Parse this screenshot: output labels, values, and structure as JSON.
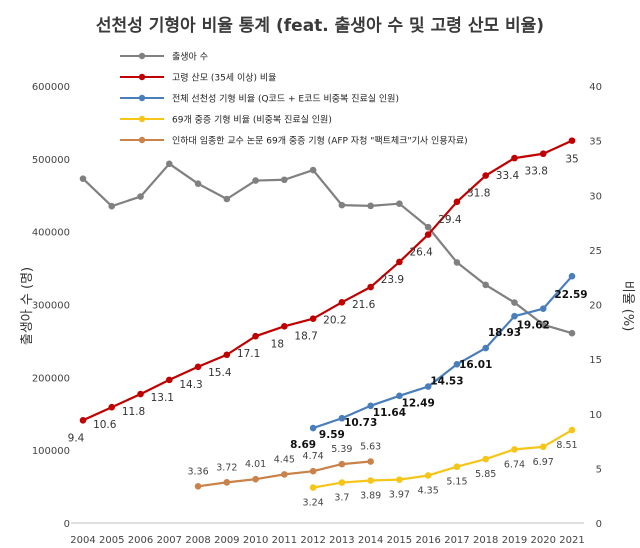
{
  "chart_data": {
    "type": "line",
    "title": "선천성 기형아 비율 통계 (feat. 출생아 수 및 고령 산모 비율)",
    "ylabel_left": "출생아 수 (명)",
    "ylabel_right": "비율 (%)",
    "x": [
      "2004",
      "2005",
      "2006",
      "2007",
      "2008",
      "2009",
      "2010",
      "2011",
      "2012",
      "2013",
      "2014",
      "2015",
      "2016",
      "2017",
      "2018",
      "2019",
      "2020",
      "2021"
    ],
    "ylim_left": [
      0,
      600000
    ],
    "yticks_left": [
      "0",
      "100000",
      "200000",
      "300000",
      "400000",
      "500000",
      "600000"
    ],
    "ylim_right": [
      0,
      40
    ],
    "yticks_right": [
      "0",
      "5",
      "10",
      "15",
      "20",
      "25",
      "30",
      "35",
      "40"
    ],
    "legend_position": "top",
    "grid": false,
    "series": [
      {
        "name": "출생아 수",
        "axis": "left",
        "color": "#808080",
        "x": [
          "2004",
          "2005",
          "2006",
          "2007",
          "2008",
          "2009",
          "2010",
          "2011",
          "2012",
          "2013",
          "2014",
          "2015",
          "2016",
          "2017",
          "2018",
          "2019",
          "2020",
          "2021"
        ],
        "values": [
          472761,
          435031,
          448153,
          493189,
          465892,
          444849,
          470171,
          471265,
          484550,
          436455,
          435435,
          438420,
          406243,
          357771,
          326822,
          302676,
          272337,
          260562
        ],
        "labels": []
      },
      {
        "name": "고령 산모 (35세 이상) 비율",
        "axis": "right",
        "color": "#c00000",
        "x": [
          "2004",
          "2005",
          "2006",
          "2007",
          "2008",
          "2009",
          "2010",
          "2011",
          "2012",
          "2013",
          "2014",
          "2015",
          "2016",
          "2017",
          "2018",
          "2019",
          "2020",
          "2021"
        ],
        "values": [
          9.4,
          10.6,
          11.8,
          13.1,
          14.3,
          15.4,
          17.1,
          18,
          18.7,
          20.2,
          21.6,
          23.9,
          26.4,
          29.4,
          31.8,
          33.4,
          33.8,
          35
        ],
        "labels": [
          "9.4",
          "10.6",
          "11.8",
          "13.1",
          "14.3",
          "15.4",
          "17.1",
          "18",
          "18.7",
          "20.2",
          "21.6",
          "23.9",
          "26.4",
          "29.4",
          "31.8",
          "33.4",
          "33.8",
          "35"
        ]
      },
      {
        "name": "전체 선천성 기형 비율 (Q코드 + E코드 비중복 진료실 인원)",
        "axis": "right",
        "color": "#4a7ebb",
        "x": [
          "2012",
          "2013",
          "2014",
          "2015",
          "2016",
          "2017",
          "2018",
          "2019",
          "2020",
          "2021"
        ],
        "values": [
          8.69,
          9.59,
          10.73,
          11.64,
          12.49,
          14.53,
          16.01,
          18.93,
          19.62,
          22.59
        ],
        "labels": [
          "8.69",
          "9.59",
          "10.73",
          "11.64",
          "12.49",
          "14.53",
          "16.01",
          "18.93",
          "19.62",
          "22.59"
        ]
      },
      {
        "name": "69개 중증 기형 비율 (비중복 진료실 인원)",
        "axis": "right",
        "color": "#f5c518",
        "x": [
          "2012",
          "2013",
          "2014",
          "2015",
          "2016",
          "2017",
          "2018",
          "2019",
          "2020",
          "2021"
        ],
        "values": [
          3.24,
          3.7,
          3.89,
          3.97,
          4.35,
          5.15,
          5.85,
          6.74,
          6.97,
          8.51
        ],
        "labels": [
          "3.24",
          "3.7",
          "3.89",
          "3.97",
          "4.35",
          "5.15",
          "5.85",
          "6.74",
          "6.97",
          "8.51"
        ]
      },
      {
        "name": "인하대 임종한 교수 논문 69개 중증 기형 (AFP 자청 \"팩트체크\"기사 인용자료)",
        "axis": "right",
        "color": "#c9824a",
        "x": [
          "2008",
          "2009",
          "2010",
          "2011",
          "2012",
          "2013",
          "2014"
        ],
        "values": [
          3.36,
          3.72,
          4.01,
          4.45,
          4.74,
          5.39,
          5.63
        ],
        "labels": [
          "3.36",
          "3.72",
          "4.01",
          "4.45",
          "4.74",
          "5.39",
          "5.63"
        ]
      }
    ]
  }
}
